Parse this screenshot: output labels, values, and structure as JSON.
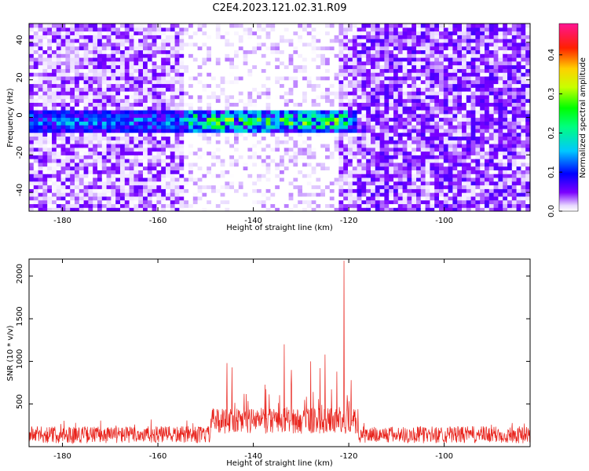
{
  "title": "C2E4.2023.121.02.31.R09",
  "chart_data": [
    {
      "type": "heatmap",
      "xlabel": "Height of straight line (km)",
      "ylabel": "Frequency (Hz)",
      "xlim": [
        -187,
        -82
      ],
      "ylim": [
        -50,
        50
      ],
      "xticks": [
        -180,
        -160,
        -140,
        -120,
        -100
      ],
      "yticks": [
        -40,
        -20,
        0,
        20,
        40
      ],
      "xtick_labels": [
        "-180",
        "-160",
        "-140",
        "-120",
        "-100"
      ],
      "ytick_labels": [
        "-40",
        "-20",
        "0",
        "20",
        "40"
      ],
      "colorbar": {
        "label": "Normalized spectral amplitude",
        "range": [
          0,
          0.48
        ],
        "ticks": [
          0.0,
          0.1,
          0.2,
          0.3,
          0.4
        ],
        "tick_labels": [
          "0.0",
          "0.1",
          "0.2",
          "0.3",
          "0.4"
        ],
        "colors": [
          "#ffffff",
          "#7b00ff",
          "#0000ff",
          "#00c8ff",
          "#00ff00",
          "#c8ff00",
          "#ffd000",
          "#ff2000",
          "#ff1493"
        ]
      },
      "bright_band": {
        "x_range": [
          -187,
          -118
        ],
        "center_frequency": -2,
        "peak_amplitude": 0.3
      },
      "low_amplitude_gap": {
        "x_range": [
          -155,
          -122
        ]
      },
      "grid": false
    },
    {
      "type": "line",
      "xlabel": "Height of straight line (km)",
      "ylabel": "SNR (10 * v/v)",
      "xlim": [
        -187,
        -82
      ],
      "ylim": [
        0,
        2200
      ],
      "xticks": [
        -180,
        -160,
        -140,
        -120,
        -100
      ],
      "yticks": [
        500,
        1000,
        1500,
        2000
      ],
      "xtick_labels": [
        "-180",
        "-160",
        "-140",
        "-120",
        "-100"
      ],
      "ytick_labels": [
        "500",
        "1000",
        "1500",
        "2000"
      ],
      "color": "#e8231c",
      "baseline_level": 150,
      "spikes": [
        {
          "x": -145.5,
          "y": 980
        },
        {
          "x": -144.5,
          "y": 930
        },
        {
          "x": -133.5,
          "y": 1200
        },
        {
          "x": -132,
          "y": 900
        },
        {
          "x": -128,
          "y": 1000
        },
        {
          "x": -126,
          "y": 920
        },
        {
          "x": -125,
          "y": 1080
        },
        {
          "x": -122.5,
          "y": 880
        },
        {
          "x": -121,
          "y": 2180
        },
        {
          "x": -119.5,
          "y": 780
        }
      ],
      "grid": false
    }
  ]
}
